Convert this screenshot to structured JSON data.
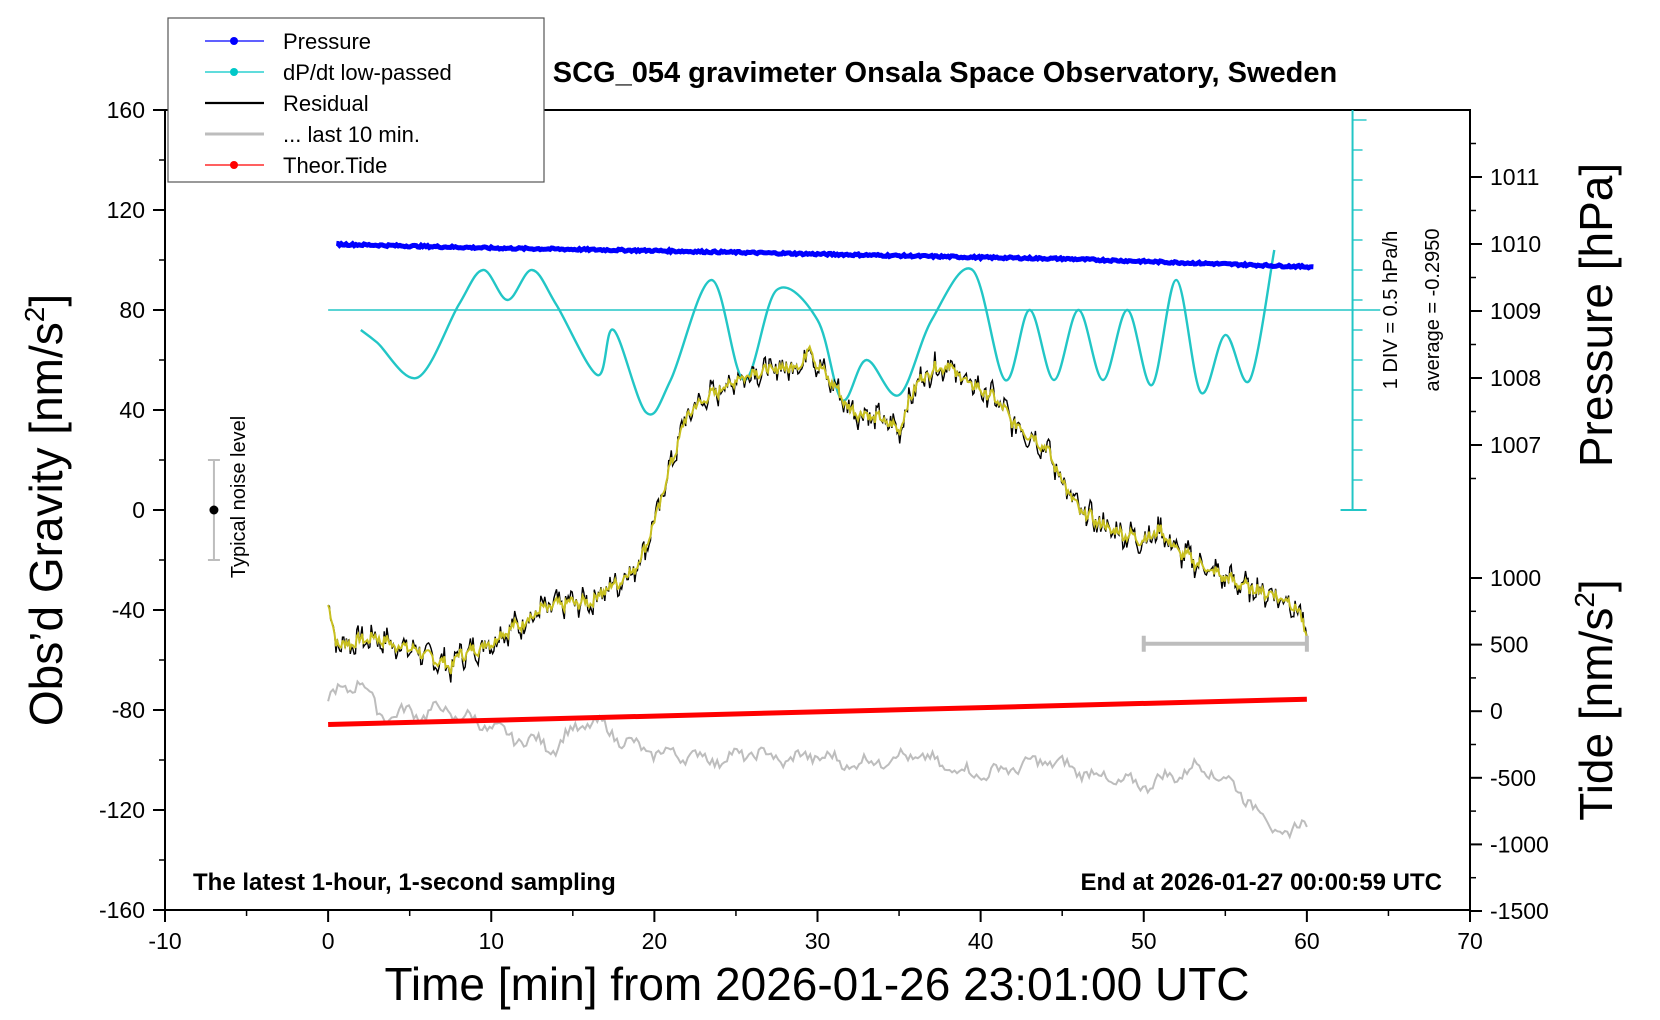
{
  "chart_data": {
    "type": "line",
    "title": "SCG_054 gravimeter Onsala Space Observatory, Sweden",
    "xlabel": "Time [min] from 2026-01-26 23:01:00 UTC",
    "ylabel_left": "Obs’d Gravity [nm/s",
    "ylabel_left_sup": "2",
    "ylabel_left_close": "]",
    "ylabel_right_top": "Pressure [hPa]",
    "ylabel_right_bottom": "Tide [nm/s",
    "ylabel_right_bottom_sup": "2",
    "ylabel_right_bottom_close": "]",
    "xlim": [
      -10,
      70
    ],
    "ylim_left": [
      -160,
      160
    ],
    "ylim_pressure": [
      1006,
      1012
    ],
    "ylim_tide": [
      -1500,
      1000
    ],
    "x_ticks": [
      "-10",
      "0",
      "10",
      "20",
      "30",
      "40",
      "50",
      "60",
      "70"
    ],
    "y_ticks_left": [
      "160",
      "120",
      "80",
      "40",
      "0",
      "-40",
      "-80",
      "-120",
      "-160"
    ],
    "y_ticks_pressure": [
      "1011",
      "1010",
      "1009",
      "1008",
      "1007"
    ],
    "y_ticks_tide": [
      "1000",
      "500",
      "0",
      "-500",
      "-1000",
      "-1500"
    ],
    "legend": [
      {
        "label": "Pressure",
        "color": "#0000ff",
        "marker": true
      },
      {
        "label": "dP/dt low-passed",
        "color": "#00c8c8",
        "marker": true
      },
      {
        "label": "Residual",
        "color": "#000000",
        "marker": false
      },
      {
        "label": "... last 10 min.",
        "color": "#bdbdbd",
        "marker": false
      },
      {
        "label": "Theor.Tide",
        "color": "#ff0000",
        "marker": true
      }
    ],
    "annotations": {
      "footer_left": "The latest 1-hour, 1-second sampling",
      "footer_right": "End at 2026-01-27 00:00:59 UTC",
      "noise": "Typical noise level",
      "dpdt_scale": "1 DIV = 0.5 hPa/h",
      "dpdt_average": "average = -0.2950"
    },
    "colors": {
      "pressure": "#0000ff",
      "dpdt": "#22c6c6",
      "residual": "#000000",
      "residual_smooth": "#c8c020",
      "last10": "#bdbdbd",
      "tide": "#ff0000"
    },
    "series": [
      {
        "name": "Residual",
        "axis": "left",
        "x": [
          0,
          0.5,
          1,
          2,
          3,
          4,
          5,
          6,
          7,
          7.5,
          8,
          9,
          10,
          11,
          12,
          13,
          14,
          15,
          16,
          17,
          18,
          19,
          20,
          21,
          22,
          23,
          24,
          25,
          26,
          27,
          28,
          29,
          29.5,
          30,
          31,
          32,
          33,
          34,
          35,
          36,
          37,
          38,
          39,
          40,
          41,
          42,
          43,
          44,
          45,
          46,
          47,
          48,
          49,
          50,
          51,
          52,
          53,
          54,
          55,
          56,
          57,
          58,
          59,
          59.5,
          60
        ],
        "y": [
          -38,
          -53,
          -54,
          -52,
          -51,
          -54,
          -55,
          -58,
          -61,
          -63,
          -58,
          -56,
          -53,
          -48,
          -45,
          -40,
          -38,
          -37,
          -37,
          -32,
          -28,
          -22,
          -5,
          18,
          38,
          44,
          48,
          52,
          55,
          56,
          57,
          58,
          66,
          58,
          50,
          40,
          38,
          36,
          32,
          50,
          56,
          58,
          52,
          48,
          44,
          35,
          30,
          25,
          12,
          0,
          -4,
          -8,
          -10,
          -12,
          -8,
          -16,
          -20,
          -24,
          -27,
          -30,
          -32,
          -34,
          -37,
          -40,
          -52
        ]
      },
      {
        "name": "... last 10 min.",
        "axis": "left",
        "x": [
          0,
          1,
          2,
          3,
          4,
          5,
          6,
          7,
          8,
          9,
          10,
          11,
          12,
          13,
          14,
          15,
          16,
          17,
          18,
          19,
          20,
          22,
          24,
          26,
          28,
          30,
          32,
          34,
          36,
          38,
          40,
          42,
          44,
          46,
          48,
          50,
          52,
          53,
          54,
          55,
          56,
          57,
          58,
          59,
          60
        ],
        "y": [
          -75,
          -72,
          -68,
          -80,
          -83,
          -80,
          -82,
          -79,
          -83,
          -84,
          -87,
          -90,
          -92,
          -93,
          -95,
          -88,
          -85,
          -87,
          -92,
          -95,
          -97,
          -98,
          -100,
          -97,
          -100,
          -98,
          -102,
          -100,
          -98,
          -103,
          -106,
          -103,
          -100,
          -104,
          -108,
          -110,
          -106,
          -103,
          -104,
          -108,
          -113,
          -120,
          -128,
          -130,
          -124
        ]
      },
      {
        "name": "Theor.Tide",
        "axis": "tide",
        "x": [
          0,
          60
        ],
        "y": [
          -100,
          90
        ]
      },
      {
        "name": "Pressure",
        "axis": "pressure",
        "x": [
          0,
          10,
          20,
          30,
          40,
          45,
          50,
          55,
          60
        ],
        "y": [
          1010.0,
          1009.94,
          1009.9,
          1009.85,
          1009.8,
          1009.78,
          1009.74,
          1009.7,
          1009.66
        ]
      },
      {
        "name": "dP/dt low-passed",
        "axis": "left",
        "x": [
          2,
          3,
          5.5,
          8,
          9.5,
          11,
          12.5,
          14,
          16.5,
          17.5,
          19.5,
          21,
          23.5,
          25.5,
          27.5,
          30,
          31.5,
          33,
          35,
          37,
          39.5,
          41.5,
          43,
          44.5,
          46,
          47.5,
          49,
          50.5,
          52,
          53.5,
          55,
          56.5,
          58
        ],
        "y": [
          72,
          67,
          53,
          82,
          96,
          84,
          96,
          82,
          54,
          72,
          39,
          52,
          92,
          52,
          88,
          76,
          44,
          60,
          46,
          76,
          96,
          52,
          80,
          52,
          80,
          52,
          80,
          50,
          92,
          47,
          70,
          52,
          104
        ]
      }
    ]
  }
}
